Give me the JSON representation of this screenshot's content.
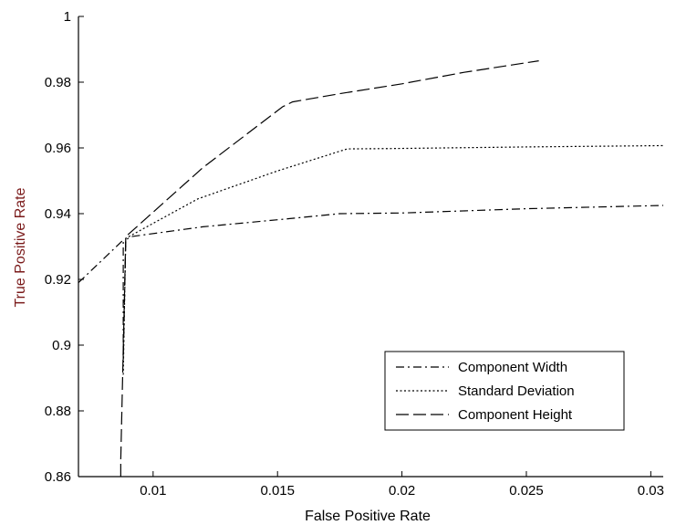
{
  "chart_data": {
    "type": "line",
    "title": "",
    "xlabel": "False Positive Rate",
    "ylabel": "True Positive Rate",
    "xlim": [
      0.007,
      0.0305
    ],
    "ylim": [
      0.86,
      1.0
    ],
    "xticks": [
      0.01,
      0.015,
      0.02,
      0.025,
      0.03
    ],
    "xtick_labels": [
      "0.01",
      "0.015",
      "0.02",
      "0.025",
      "0.03"
    ],
    "yticks": [
      0.86,
      0.88,
      0.9,
      0.92,
      0.94,
      0.96,
      0.98,
      1.0
    ],
    "ytick_labels": [
      "0.86",
      "0.88",
      "0.9",
      "0.92",
      "0.94",
      "0.96",
      "0.98",
      "1"
    ],
    "grid": false,
    "legend": "bottom-right",
    "colors": {
      "axes": "#000000",
      "ylabel": "#7a1a1a",
      "xlabel": "#000000",
      "lines": "#000000"
    },
    "series": [
      {
        "name": "Component Width",
        "dash": "dash-dot",
        "x": [
          0.007,
          0.0088,
          0.0088,
          0.0089,
          0.0091,
          0.012,
          0.0155,
          0.0175,
          0.02,
          0.025,
          0.0305
        ],
        "y": [
          0.919,
          0.932,
          0.895,
          0.932,
          0.933,
          0.936,
          0.9385,
          0.94,
          0.9402,
          0.9415,
          0.9425
        ]
      },
      {
        "name": "Standard Deviation",
        "dash": "dotted",
        "x": [
          0.0088,
          0.0089,
          0.0089,
          0.0118,
          0.015,
          0.0178,
          0.0195,
          0.025,
          0.0305
        ],
        "y": [
          0.891,
          0.9325,
          0.9325,
          0.9445,
          0.953,
          0.9597,
          0.9598,
          0.9603,
          0.9607
        ]
      },
      {
        "name": "Component Height",
        "dash": "long-dash",
        "x": [
          0.0087,
          0.0087,
          0.0089,
          0.0089,
          0.012,
          0.0152,
          0.0156,
          0.0175,
          0.02,
          0.0225,
          0.0255
        ],
        "y": [
          0.86,
          0.865,
          0.9325,
          0.933,
          0.954,
          0.9725,
          0.974,
          0.9765,
          0.9795,
          0.983,
          0.9865
        ]
      }
    ]
  }
}
